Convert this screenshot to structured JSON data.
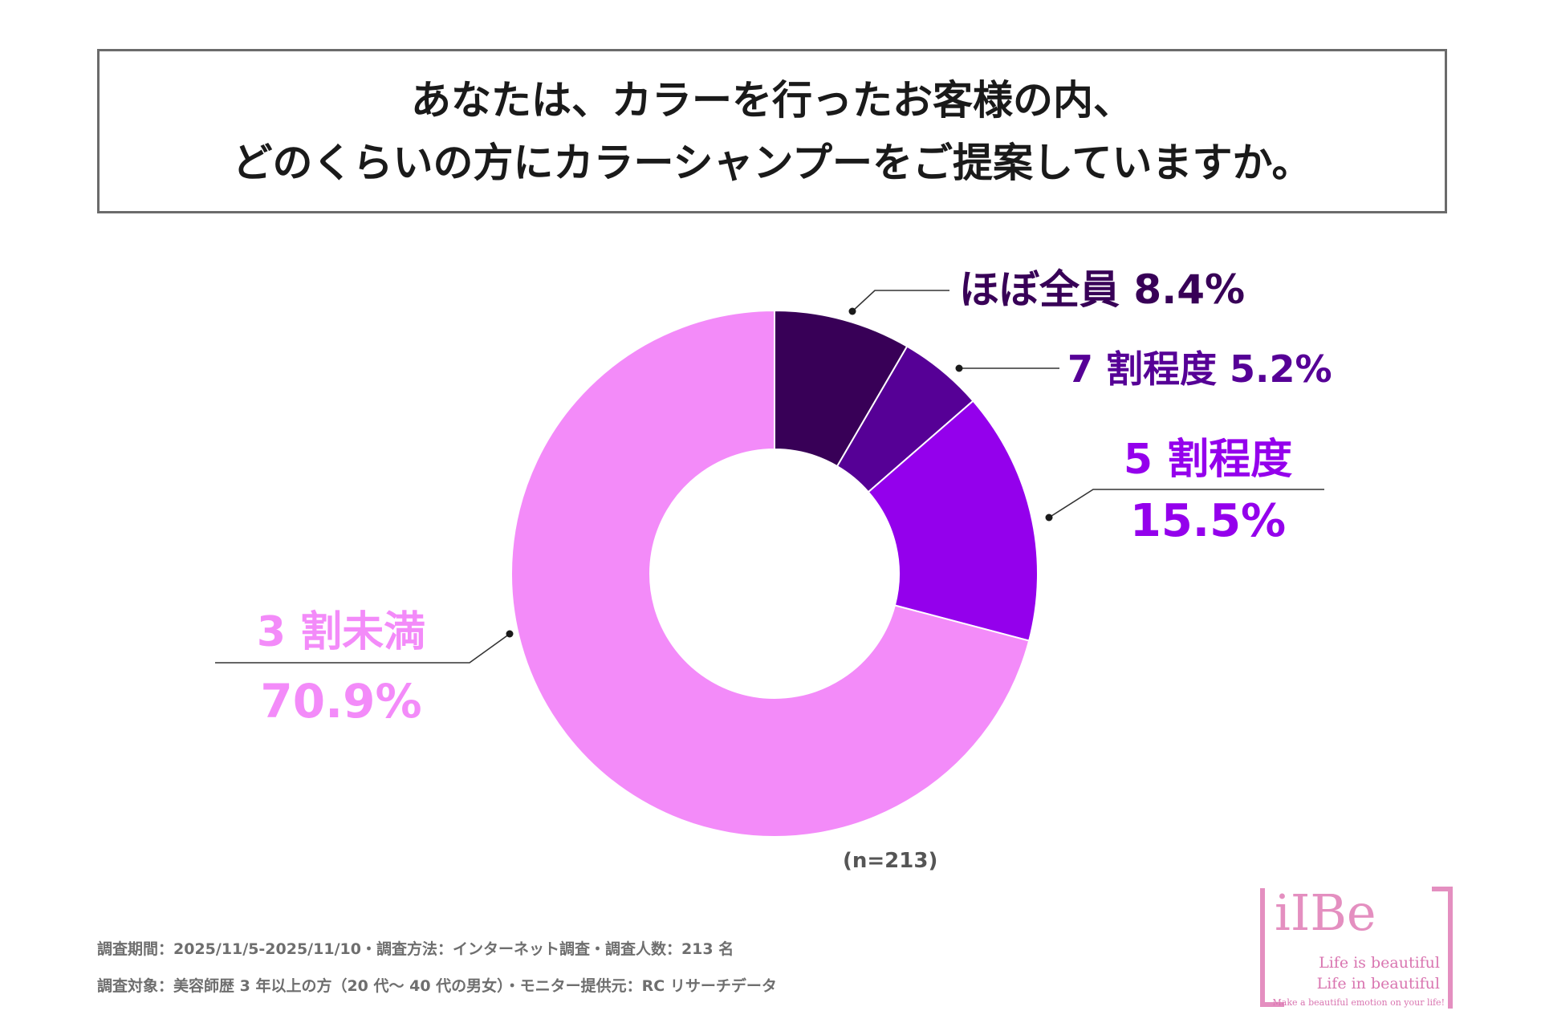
{
  "title": {
    "line1": "あなたは、カラーを行ったお客様の内、",
    "line2": "どのくらいの方にカラーシャンプーをご提案していますか。"
  },
  "chart_data": {
    "type": "pie",
    "variant": "donut",
    "title": "あなたは、カラーを行ったお客様の内、どのくらいの方にカラーシャンプーをご提案していますか。",
    "slices": [
      {
        "label": "ほぼ全員",
        "value": 8.4,
        "value_text": "8.4%",
        "color": "#380057"
      },
      {
        "label": "7 割程度",
        "value": 5.2,
        "value_text": "5.2%",
        "color": "#560096"
      },
      {
        "label": "5 割程度",
        "value": 15.5,
        "value_text": "15.5%",
        "color": "#9400EC"
      },
      {
        "label": "3 割未満",
        "value": 70.9,
        "value_text": "70.9%",
        "color": "#F38BF9"
      }
    ],
    "sample": "(n=213)"
  },
  "notes": {
    "line1": "調査期間：2025/11/5-2025/11/10・調査方法：インターネット調査・調査人数：213 名",
    "line2": "調査対象：美容師歴 3 年以上の方（20 代～ 40 代の男女）・モニター提供元：RC リサーチデータ"
  },
  "logo": {
    "mark": "iIBe",
    "tagline1": "Life is beautiful",
    "tagline2": "Life in beautiful",
    "tagline3": "Make a beautiful emotion on your life!"
  },
  "colors": {
    "title_border": "#6b6b6b",
    "leader_line": "#333333",
    "logo": "#e48fc0"
  }
}
